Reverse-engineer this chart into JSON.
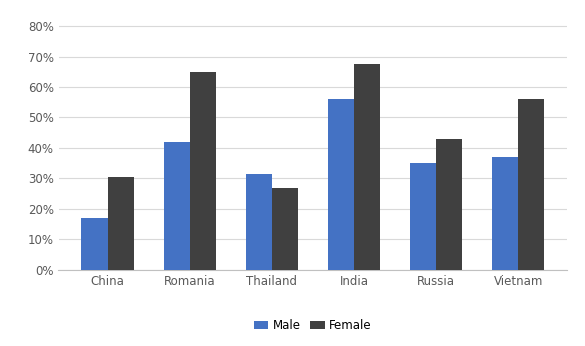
{
  "categories": [
    "China",
    "Romania",
    "Thailand",
    "India",
    "Russia",
    "Vietnam"
  ],
  "male_values": [
    0.17,
    0.42,
    0.315,
    0.56,
    0.35,
    0.37
  ],
  "female_values": [
    0.305,
    0.65,
    0.27,
    0.675,
    0.43,
    0.56
  ],
  "male_color": "#4472c4",
  "female_color": "#404040",
  "legend_labels": [
    "Male",
    "Female"
  ],
  "yticks": [
    0.0,
    0.1,
    0.2,
    0.3,
    0.4,
    0.5,
    0.6,
    0.7,
    0.8
  ],
  "ylim": [
    0,
    0.84
  ],
  "bar_width": 0.32,
  "background_color": "#ffffff",
  "grid_color": "#d9d9d9"
}
